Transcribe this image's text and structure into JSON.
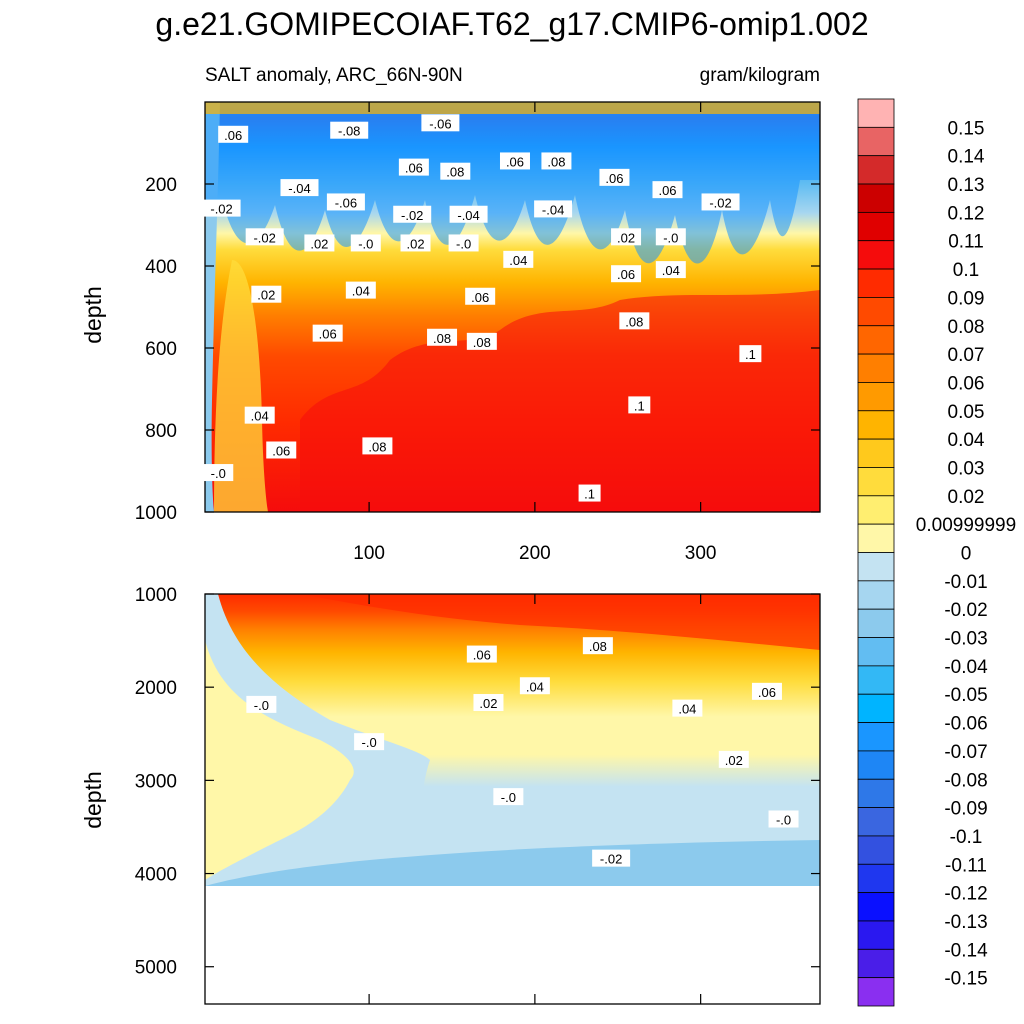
{
  "title": "g.e21.GOMIPECOIAF.T62_g17.CMIP6-omip1.002",
  "subtitle_left": "SALT anomaly, ARC_66N-90N",
  "subtitle_right": "gram/kilogram",
  "chart_data": {
    "type": "heatmap",
    "variable": "SALT anomaly",
    "region": "ARC_66N-90N",
    "units": "gram/kilogram",
    "x_axis": {
      "range": [
        1,
        372
      ],
      "ticks": [
        100,
        200,
        300
      ]
    },
    "panels": [
      {
        "name": "upper",
        "ylabel": "depth",
        "depth_range": [
          0,
          1000
        ],
        "yticks": [
          200,
          400,
          600,
          800,
          1000
        ],
        "contour_labels": [
          {
            "text": ".06",
            "x": 18,
            "depth": 80
          },
          {
            "text": "-.08",
            "x": 88,
            "depth": 70
          },
          {
            "text": "-.06",
            "x": 143,
            "depth": 52
          },
          {
            "text": ".06",
            "x": 127,
            "depth": 160
          },
          {
            "text": ".08",
            "x": 152,
            "depth": 170
          },
          {
            "text": ".06",
            "x": 188,
            "depth": 145
          },
          {
            "text": ".08",
            "x": 213,
            "depth": 145
          },
          {
            "text": ".06",
            "x": 248,
            "depth": 185
          },
          {
            "text": ".06",
            "x": 280,
            "depth": 215
          },
          {
            "text": "-.02",
            "x": 11,
            "depth": 260
          },
          {
            "text": "-.04",
            "x": 58,
            "depth": 210
          },
          {
            "text": "-.06",
            "x": 86,
            "depth": 245
          },
          {
            "text": "-.02",
            "x": 126,
            "depth": 275
          },
          {
            "text": "-.04",
            "x": 160,
            "depth": 275
          },
          {
            "text": "-.04",
            "x": 211,
            "depth": 262
          },
          {
            "text": "-.02",
            "x": 312,
            "depth": 245
          },
          {
            "text": "-.02",
            "x": 37,
            "depth": 330
          },
          {
            "text": ".02",
            "x": 70,
            "depth": 345
          },
          {
            "text": "-.0",
            "x": 98,
            "depth": 345
          },
          {
            "text": ".02",
            "x": 128,
            "depth": 345
          },
          {
            "text": "-.0",
            "x": 157,
            "depth": 345
          },
          {
            "text": ".02",
            "x": 255,
            "depth": 330
          },
          {
            "text": "-.0",
            "x": 282,
            "depth": 330
          },
          {
            "text": ".02",
            "x": 38,
            "depth": 470
          },
          {
            "text": ".04",
            "x": 95,
            "depth": 460
          },
          {
            "text": ".04",
            "x": 190,
            "depth": 385
          },
          {
            "text": ".06",
            "x": 167,
            "depth": 475
          },
          {
            "text": ".06",
            "x": 255,
            "depth": 420
          },
          {
            "text": ".04",
            "x": 282,
            "depth": 410
          },
          {
            "text": ".06",
            "x": 75,
            "depth": 565
          },
          {
            "text": ".08",
            "x": 144,
            "depth": 575
          },
          {
            "text": ".08",
            "x": 168,
            "depth": 585
          },
          {
            "text": ".08",
            "x": 260,
            "depth": 535
          },
          {
            "text": ".1",
            "x": 330,
            "depth": 615
          },
          {
            "text": ".04",
            "x": 34,
            "depth": 765
          },
          {
            "text": ".06",
            "x": 47,
            "depth": 850
          },
          {
            "text": ".08",
            "x": 105,
            "depth": 840
          },
          {
            "text": ".1",
            "x": 263,
            "depth": 740
          },
          {
            "text": "-.0",
            "x": 9,
            "depth": 905
          },
          {
            "text": ".1",
            "x": 233,
            "depth": 955
          }
        ]
      },
      {
        "name": "lower",
        "ylabel": "depth",
        "depth_range": [
          1000,
          5400
        ],
        "yticks": [
          1000,
          2000,
          3000,
          4000,
          5000
        ],
        "data_bottom_depth": 4125,
        "contour_labels": [
          {
            "text": ".06",
            "x": 168,
            "depth": 1650
          },
          {
            "text": ".08",
            "x": 238,
            "depth": 1560
          },
          {
            "text": ".04",
            "x": 200,
            "depth": 1990
          },
          {
            "text": ".02",
            "x": 172,
            "depth": 2170
          },
          {
            "text": ".04",
            "x": 292,
            "depth": 2230
          },
          {
            "text": ".06",
            "x": 340,
            "depth": 2050
          },
          {
            "text": "-.0",
            "x": 35,
            "depth": 2190
          },
          {
            "text": "-.0",
            "x": 100,
            "depth": 2590
          },
          {
            "text": ".02",
            "x": 320,
            "depth": 2780
          },
          {
            "text": "-.0",
            "x": 184,
            "depth": 3180
          },
          {
            "text": "-.0",
            "x": 350,
            "depth": 3420
          },
          {
            "text": "-.02",
            "x": 246,
            "depth": 3840
          }
        ]
      }
    ],
    "colorbar": {
      "levels": [
        "0.15",
        "0.14",
        "0.13",
        "0.12",
        "0.11",
        "0.1",
        "0.09",
        "0.08",
        "0.07",
        "0.06",
        "0.05",
        "0.04",
        "0.03",
        "0.02",
        "0.00999999",
        "0",
        "-0.01",
        "-0.02",
        "-0.03",
        "-0.04",
        "-0.05",
        "-0.06",
        "-0.07",
        "-0.08",
        "-0.09",
        "-0.1",
        "-0.11",
        "-0.12",
        "-0.13",
        "-0.14",
        "-0.15"
      ],
      "colors": [
        "#ffb3b3",
        "#e86464",
        "#d42a2a",
        "#cc0000",
        "#e00000",
        "#f50c0c",
        "#ff2b00",
        "#ff4a00",
        "#ff6600",
        "#ff7f00",
        "#ff9a00",
        "#ffb400",
        "#ffc91c",
        "#ffdc3c",
        "#ffee70",
        "#fff7a8",
        "#c4e3f2",
        "#a6d6f0",
        "#8ccaed",
        "#62bdf2",
        "#33b8f5",
        "#00b4ff",
        "#1a96ff",
        "#1e86f5",
        "#2e78e8",
        "#3a66e0",
        "#3351e0",
        "#1f37ef",
        "#0a10ff",
        "#2a18f0",
        "#4a1ee8",
        "#8a2ff0"
      ]
    }
  }
}
